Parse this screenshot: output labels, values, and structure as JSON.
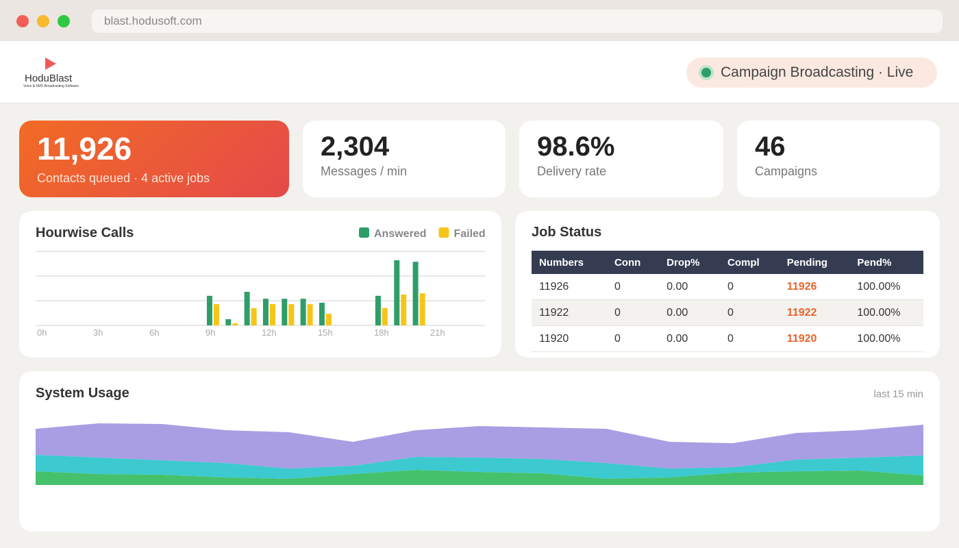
{
  "browser": {
    "url": "blast.hodusoft.com"
  },
  "header": {
    "logo": "HoduBlast",
    "tagline": "Voice & SMS Broadcasting Software",
    "status": "Campaign Broadcasting · Live"
  },
  "kpis": [
    {
      "value": "11,926",
      "label": "Contacts queued · 4 active jobs"
    },
    {
      "value": "2,304",
      "label": "Messages / min"
    },
    {
      "value": "98.6%",
      "label": "Delivery rate"
    },
    {
      "value": "46",
      "label": "Campaigns"
    }
  ],
  "chart_data": [
    {
      "type": "bar",
      "title": "Hourwise Calls",
      "categories": [
        "0h",
        null,
        null,
        "3h",
        null,
        null,
        "6h",
        null,
        null,
        "9h",
        null,
        null,
        "12h",
        null,
        null,
        "15h",
        null,
        null,
        "18h",
        null,
        null,
        "21h",
        null,
        null
      ],
      "series": [
        {
          "name": "Answered",
          "color": "#2e9e68",
          "values": [
            0,
            0,
            0,
            0,
            0,
            0,
            0,
            0,
            0,
            1.2,
            0.25,
            1.36,
            1.08,
            1.08,
            1.08,
            0.92,
            0,
            0,
            1.2,
            2.64,
            2.58,
            0,
            0,
            0
          ]
        },
        {
          "name": "Failed",
          "color": "#f5c518",
          "values": [
            0,
            0,
            0,
            0,
            0,
            0,
            0,
            0,
            0,
            0.86,
            0.08,
            0.7,
            0.86,
            0.86,
            0.86,
            0.47,
            0,
            0,
            0.7,
            1.25,
            1.3,
            0,
            0,
            0
          ]
        }
      ],
      "ylim": [
        0,
        3
      ],
      "yticks": [
        0,
        1,
        2,
        3
      ],
      "grid": true,
      "legend": "top-right"
    },
    {
      "type": "stacked-area",
      "title": "System Usage",
      "subtitle": "last 15 min",
      "series": [
        {
          "color": "#45c16c",
          "values": [
            20,
            16,
            15,
            11,
            9,
            16,
            22,
            19,
            17,
            9,
            11,
            18,
            20,
            21,
            14
          ]
        },
        {
          "color": "#3cc9d0",
          "values": [
            24,
            24,
            21,
            21,
            15,
            12,
            19,
            21,
            21,
            23,
            13,
            8,
            17,
            19,
            29
          ]
        },
        {
          "color": "#a99ee3",
          "values": [
            38,
            50,
            53,
            48,
            53,
            35,
            39,
            46,
            46,
            50,
            39,
            35,
            39,
            40,
            45
          ]
        }
      ],
      "ylim": [
        0,
        110
      ]
    }
  ],
  "table": {
    "title": "Job Status",
    "columns": [
      "Numbers",
      "Conn",
      "Drop%",
      "Compl",
      "Pending",
      "Pend%"
    ],
    "rows": [
      [
        "11926",
        "0",
        "0.00",
        "0",
        "11926",
        "100.00%"
      ],
      [
        "11922",
        "0",
        "0.00",
        "0",
        "11922",
        "100.00%"
      ],
      [
        "11920",
        "0",
        "0.00",
        "0",
        "11920",
        "100.00%"
      ]
    ]
  }
}
